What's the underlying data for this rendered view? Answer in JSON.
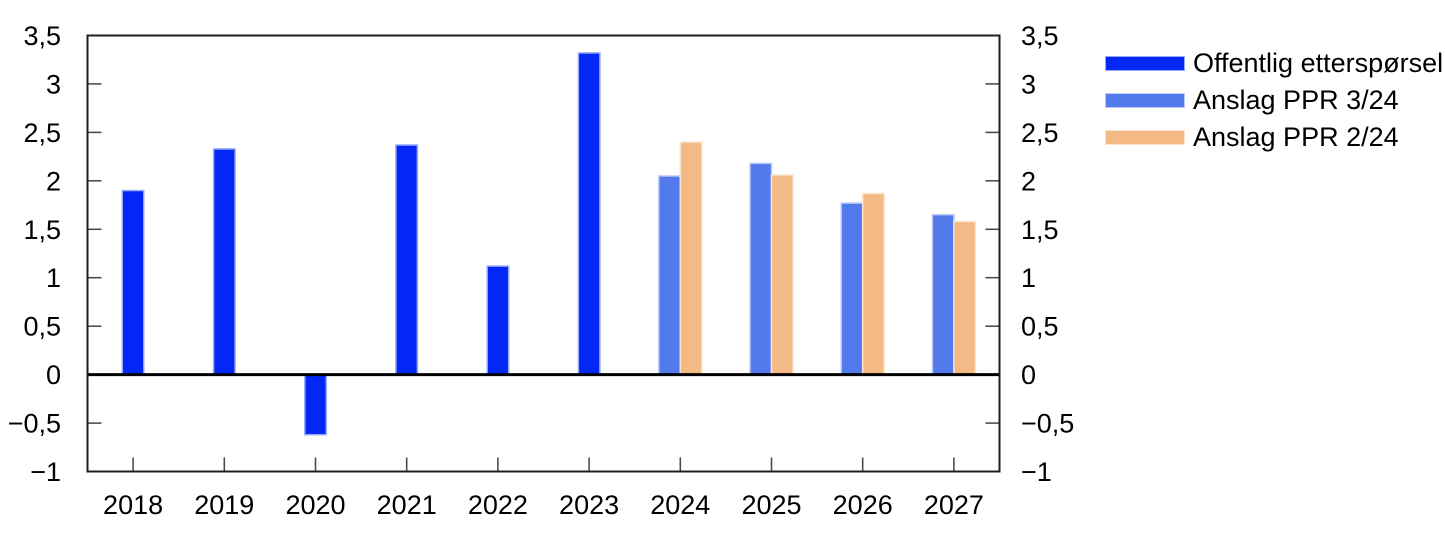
{
  "chart_data": {
    "type": "bar",
    "title": "",
    "xlabel": "",
    "ylabel": "",
    "categories": [
      "2018",
      "2019",
      "2020",
      "2021",
      "2022",
      "2023",
      "2024",
      "2025",
      "2026",
      "2027"
    ],
    "series": [
      {
        "name": "Offentlig etterspørsel",
        "color": "#0328F5",
        "values": [
          1.9,
          2.33,
          -0.62,
          2.37,
          1.12,
          3.32,
          null,
          null,
          null,
          null
        ]
      },
      {
        "name": "Anslag PPR 3/24",
        "color": "#527AEC",
        "values": [
          null,
          null,
          null,
          null,
          null,
          null,
          2.05,
          2.18,
          1.77,
          1.65
        ]
      },
      {
        "name": "Anslag PPR 2/24",
        "color": "#F4BA85",
        "values": [
          null,
          null,
          null,
          null,
          null,
          null,
          2.4,
          2.06,
          1.87,
          1.58
        ]
      }
    ],
    "ylim": [
      -1,
      3.5
    ],
    "yticks": [
      {
        "v": 3.5,
        "label": "3,5"
      },
      {
        "v": 3,
        "label": "3"
      },
      {
        "v": 2.5,
        "label": "2,5"
      },
      {
        "v": 2,
        "label": "2"
      },
      {
        "v": 1.5,
        "label": "1,5"
      },
      {
        "v": 1,
        "label": "1"
      },
      {
        "v": 0.5,
        "label": "0,5"
      },
      {
        "v": 0,
        "label": "0"
      },
      {
        "v": -0.5,
        "label": "−0,5"
      },
      {
        "v": -1,
        "label": "−1"
      }
    ],
    "grid": false,
    "legend_position": "top-right",
    "dual_y_axis": true,
    "decimal_separator": ",",
    "colors": {
      "axis": "#1f1f1f",
      "tick": "#444444",
      "zero_line": "#000000",
      "text": "#000000",
      "background": "#ffffff"
    }
  }
}
